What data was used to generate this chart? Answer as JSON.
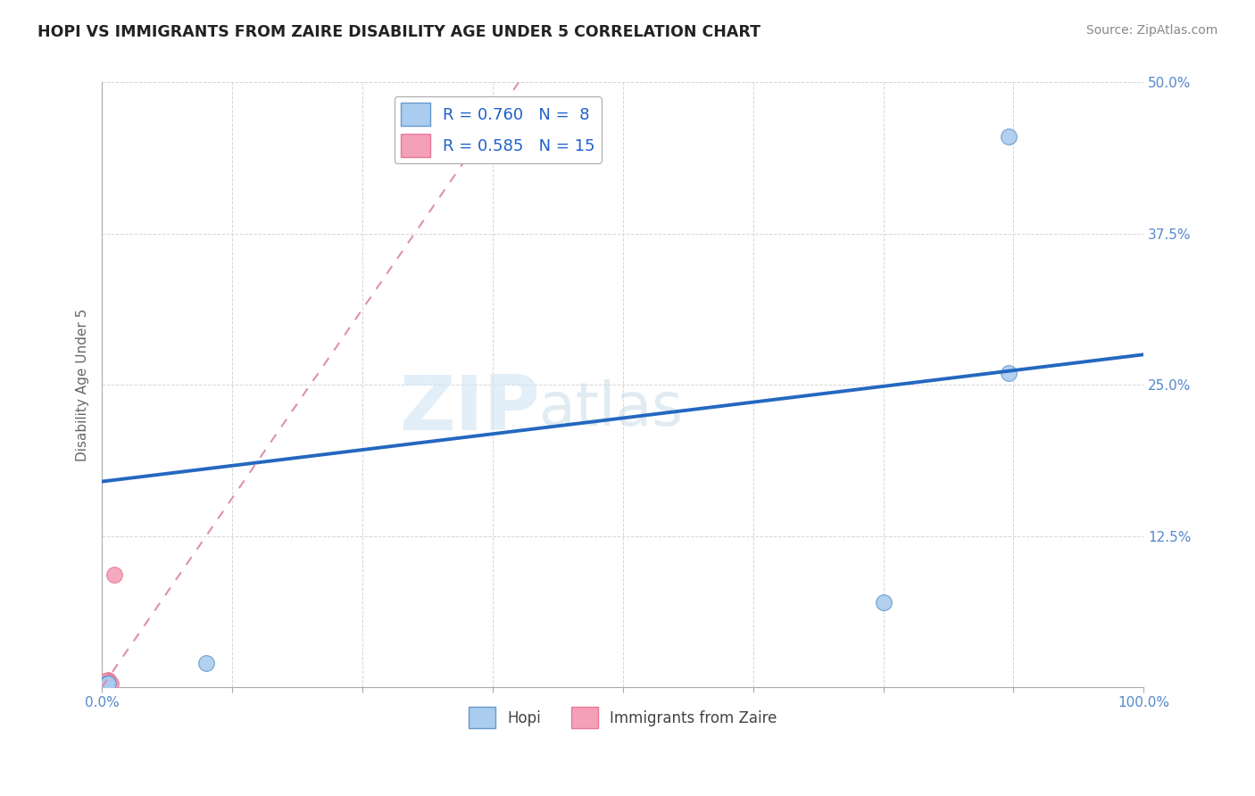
{
  "title": "HOPI VS IMMIGRANTS FROM ZAIRE DISABILITY AGE UNDER 5 CORRELATION CHART",
  "source": "Source: ZipAtlas.com",
  "ylabel": "Disability Age Under 5",
  "xlim": [
    0,
    1.0
  ],
  "ylim": [
    0,
    0.5
  ],
  "xticks": [
    0.0,
    0.125,
    0.25,
    0.375,
    0.5,
    0.625,
    0.75,
    0.875,
    1.0
  ],
  "xticklabels": [
    "0.0%",
    "",
    "",
    "",
    "",
    "",
    "",
    "",
    "100.0%"
  ],
  "yticks": [
    0.0,
    0.125,
    0.25,
    0.375,
    0.5
  ],
  "yticklabels": [
    "",
    "12.5%",
    "25.0%",
    "37.5%",
    "50.0%"
  ],
  "hopi_x": [
    0.003,
    0.004,
    0.005,
    0.006,
    0.1,
    0.75,
    0.87,
    0.87
  ],
  "hopi_y": [
    0.002,
    0.003,
    0.002,
    0.003,
    0.02,
    0.07,
    0.26,
    0.455
  ],
  "zaire_x": [
    0.004,
    0.003,
    0.005,
    0.006,
    0.007,
    0.004,
    0.003,
    0.005,
    0.006,
    0.008,
    0.004,
    0.003,
    0.005,
    0.006,
    0.012
  ],
  "zaire_y": [
    0.005,
    0.004,
    0.003,
    0.006,
    0.004,
    0.005,
    0.003,
    0.004,
    0.005,
    0.003,
    0.004,
    0.005,
    0.003,
    0.004,
    0.093
  ],
  "hopi_line_x0": 0.0,
  "hopi_line_y0": 0.17,
  "hopi_line_x1": 1.0,
  "hopi_line_y1": 0.275,
  "zaire_line_x0": 0.0,
  "zaire_line_y0": 0.0,
  "zaire_line_x1": 0.4,
  "zaire_line_y1": 0.5,
  "hopi_color": "#aaccee",
  "zaire_color": "#f4a0b8",
  "zaire_dot_color": "#e87898",
  "hopi_line_color": "#2468c0",
  "zaire_line_color": "#e090a8",
  "hopi_R": 0.76,
  "hopi_N": 8,
  "zaire_R": 0.585,
  "zaire_N": 15,
  "watermark_zip": "ZIP",
  "watermark_atlas": "atlas",
  "marker_size": 90,
  "background_color": "#ffffff",
  "grid_color": "#cccccc",
  "title_color": "#222222",
  "source_color": "#888888",
  "tick_color": "#5588cc",
  "label_color": "#666666",
  "legend_text_color": "#2060cc"
}
